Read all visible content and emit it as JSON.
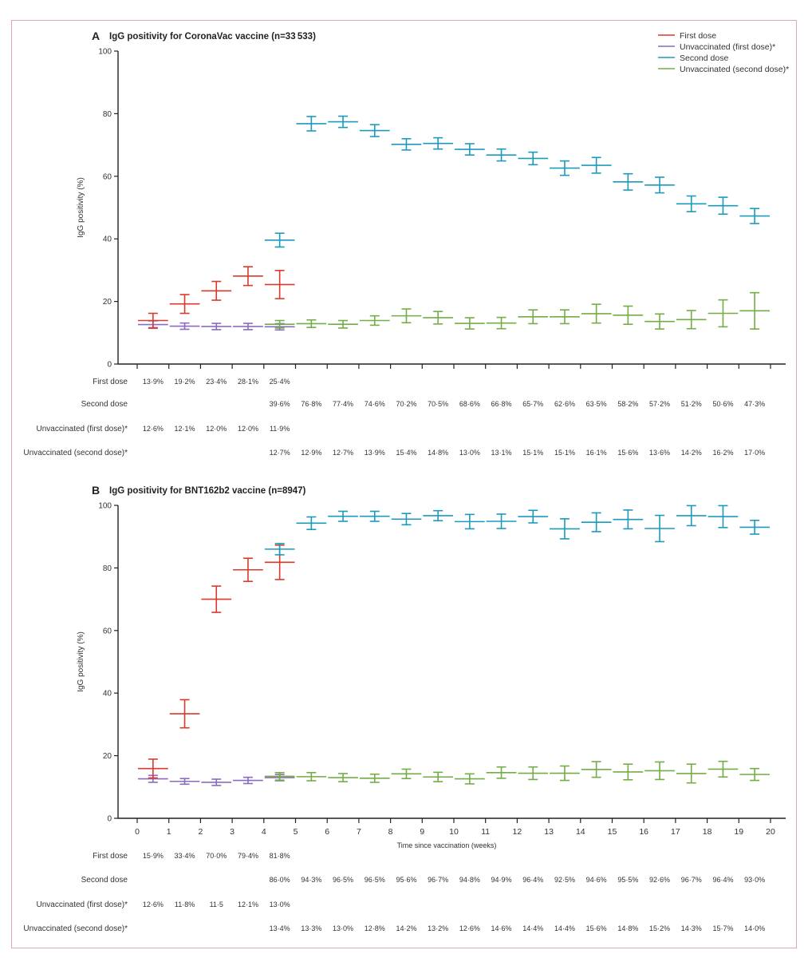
{
  "colors": {
    "first_dose": "#d93a2b",
    "unvacc_first": "#8a6bbf",
    "second_dose": "#1a9bbd",
    "unvacc_second": "#72ad45",
    "axis": "#222222",
    "frame": "#d9a9b6"
  },
  "legend": [
    {
      "key": "first_dose",
      "label": "First dose"
    },
    {
      "key": "unvacc_first",
      "label": "Unvaccinated (first dose)*"
    },
    {
      "key": "second_dose",
      "label": "Second dose"
    },
    {
      "key": "unvacc_second",
      "label": "Unvaccinated (second dose)*"
    }
  ],
  "chart_data": [
    {
      "type": "scatter",
      "panel_letter": "A",
      "title": "IgG positivity for CoronaVac vaccine (n=33 533)",
      "ylabel": "IgG positivity (%)",
      "xlabel": "",
      "ylim": [
        0,
        100
      ],
      "yticks": [
        0,
        20,
        40,
        60,
        80,
        100
      ],
      "xlim": [
        0,
        20
      ],
      "xticks": [
        0,
        1,
        2,
        3,
        4,
        5,
        6,
        7,
        8,
        9,
        10,
        11,
        12,
        13,
        14,
        15,
        16,
        17,
        18,
        19,
        20
      ],
      "show_xtick_labels": false,
      "legend_position": "top-right",
      "series": [
        {
          "key": "first_dose",
          "name": "First dose",
          "start_week": 0,
          "values": [
            13.9,
            19.2,
            23.4,
            28.1,
            25.4
          ],
          "err": [
            2.3,
            3.0,
            3.0,
            3.0,
            4.5
          ],
          "labels": [
            "13·9%",
            "19·2%",
            "23·4%",
            "28·1%",
            "25·4%"
          ]
        },
        {
          "key": "second_dose",
          "name": "Second dose",
          "start_week": 4,
          "values": [
            39.6,
            76.8,
            77.4,
            74.6,
            70.2,
            70.5,
            68.6,
            66.8,
            65.7,
            62.6,
            63.5,
            58.2,
            57.2,
            51.2,
            50.6,
            47.3
          ],
          "err": [
            2.2,
            2.3,
            1.8,
            1.9,
            1.8,
            1.8,
            1.8,
            1.9,
            2.0,
            2.3,
            2.5,
            2.6,
            2.5,
            2.5,
            2.7,
            2.4
          ],
          "labels": [
            "39·6%",
            "76·8%",
            "77·4%",
            "74·6%",
            "70·2%",
            "70·5%",
            "68·6%",
            "66·8%",
            "65·7%",
            "62·6%",
            "63·5%",
            "58·2%",
            "57·2%",
            "51·2%",
            "50·6%",
            "47·3%"
          ]
        },
        {
          "key": "unvacc_first",
          "name": "Unvaccinated (first dose)*",
          "start_week": 0,
          "values": [
            12.6,
            12.1,
            12.0,
            12.0,
            11.9
          ],
          "err": [
            1.2,
            1.0,
            1.0,
            1.0,
            1.0
          ],
          "labels": [
            "12·6%",
            "12·1%",
            "12·0%",
            "12·0%",
            "11·9%"
          ]
        },
        {
          "key": "unvacc_second",
          "name": "Unvaccinated (second dose)*",
          "start_week": 4,
          "values": [
            12.7,
            12.9,
            12.7,
            13.9,
            15.4,
            14.8,
            13.0,
            13.1,
            15.1,
            15.1,
            16.1,
            15.6,
            13.6,
            14.2,
            16.2,
            17.0
          ],
          "err": [
            1.2,
            1.2,
            1.2,
            1.5,
            2.2,
            2.0,
            1.8,
            1.8,
            2.2,
            2.2,
            3.0,
            2.9,
            2.4,
            2.9,
            4.3,
            5.8
          ],
          "labels": [
            "12·7%",
            "12·9%",
            "12·7%",
            "13·9%",
            "15·4%",
            "14·8%",
            "13·0%",
            "13·1%",
            "15·1%",
            "15·1%",
            "16·1%",
            "15·6%",
            "13·6%",
            "14·2%",
            "16·2%",
            "17·0%"
          ]
        }
      ],
      "table_rows": [
        {
          "key": "first_dose",
          "label": "First dose"
        },
        {
          "key": "second_dose",
          "label": "Second dose"
        },
        {
          "key": "unvacc_first",
          "label": "Unvaccinated (first dose)*"
        },
        {
          "key": "unvacc_second",
          "label": "Unvaccinated (second dose)*"
        }
      ]
    },
    {
      "type": "scatter",
      "panel_letter": "B",
      "title": "IgG positivity for BNT162b2 vaccine (n=8947)",
      "ylabel": "IgG positivity (%)",
      "xlabel": "Time since vaccination (weeks)",
      "ylim": [
        0,
        100
      ],
      "yticks": [
        0,
        20,
        40,
        60,
        80,
        100
      ],
      "xlim": [
        0,
        20
      ],
      "xticks": [
        0,
        1,
        2,
        3,
        4,
        5,
        6,
        7,
        8,
        9,
        10,
        11,
        12,
        13,
        14,
        15,
        16,
        17,
        18,
        19,
        20
      ],
      "show_xtick_labels": true,
      "series": [
        {
          "key": "first_dose",
          "name": "First dose",
          "start_week": 0,
          "values": [
            15.9,
            33.4,
            70.0,
            79.4,
            81.8
          ],
          "err": [
            3.0,
            4.5,
            4.2,
            3.7,
            5.5
          ],
          "labels": [
            "15·9%",
            "33·4%",
            "70·0%",
            "79·4%",
            "81·8%"
          ]
        },
        {
          "key": "second_dose",
          "name": "Second dose",
          "start_week": 4,
          "values": [
            86.0,
            94.3,
            96.5,
            96.5,
            95.6,
            96.7,
            94.8,
            94.9,
            96.4,
            92.5,
            94.6,
            95.5,
            92.6,
            96.7,
            96.4,
            93.0
          ],
          "err": [
            1.8,
            2.0,
            1.6,
            1.6,
            1.8,
            1.6,
            2.3,
            2.3,
            2.0,
            3.2,
            3.0,
            3.0,
            4.2,
            3.2,
            3.5,
            2.2
          ],
          "labels": [
            "86·0%",
            "94·3%",
            "96·5%",
            "96·5%",
            "95·6%",
            "96·7%",
            "94·8%",
            "94·9%",
            "96·4%",
            "92·5%",
            "94·6%",
            "95·5%",
            "92·6%",
            "96·7%",
            "96·4%",
            "93·0%"
          ]
        },
        {
          "key": "unvacc_first",
          "name": "Unvaccinated (first dose)*",
          "start_week": 0,
          "values": [
            12.6,
            11.8,
            11.5,
            12.1,
            13.0
          ],
          "err": [
            1.1,
            0.9,
            1.0,
            1.0,
            1.0
          ],
          "labels": [
            "12·6%",
            "11·8%",
            "11·5",
            "12·1%",
            "13·0%"
          ]
        },
        {
          "key": "unvacc_second",
          "name": "Unvaccinated (second dose)*",
          "start_week": 4,
          "values": [
            13.4,
            13.3,
            13.0,
            12.8,
            14.2,
            13.2,
            12.6,
            14.6,
            14.4,
            14.4,
            15.6,
            14.8,
            15.2,
            14.3,
            15.7,
            14.0
          ],
          "err": [
            1.2,
            1.3,
            1.3,
            1.3,
            1.5,
            1.5,
            1.6,
            1.8,
            2.0,
            2.3,
            2.5,
            2.5,
            2.8,
            3.0,
            2.5,
            1.9
          ],
          "labels": [
            "13·4%",
            "13·3%",
            "13·0%",
            "12·8%",
            "14·2%",
            "13·2%",
            "12·6%",
            "14·6%",
            "14·4%",
            "14·4%",
            "15·6%",
            "14·8%",
            "15·2%",
            "14·3%",
            "15·7%",
            "14·0%"
          ]
        }
      ],
      "table_rows": [
        {
          "key": "first_dose",
          "label": "First dose"
        },
        {
          "key": "second_dose",
          "label": "Second dose"
        },
        {
          "key": "unvacc_first",
          "label": "Unvaccinated (first dose)*"
        },
        {
          "key": "unvacc_second",
          "label": "Unvaccinated (second dose)*"
        }
      ]
    }
  ]
}
